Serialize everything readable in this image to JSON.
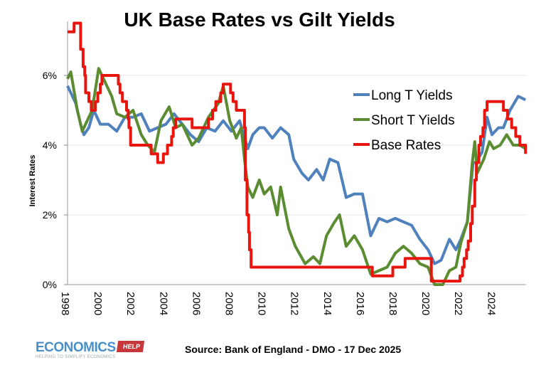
{
  "chart_data": {
    "type": "line",
    "title": "UK Base Rates vs Gilt Yields",
    "ylabel": "Interest Rates",
    "xlabel": "",
    "ylim": [
      0,
      7.5
    ],
    "xlim": [
      1998,
      2025.95
    ],
    "y_ticks": [
      "0%",
      "2%",
      "4%",
      "6%"
    ],
    "y_tick_values": [
      0,
      2,
      4,
      6
    ],
    "x_ticks": [
      "1998",
      "2000",
      "2002",
      "2004",
      "2006",
      "2008",
      "2010",
      "2012",
      "2014",
      "2016",
      "2018",
      "2020",
      "2022",
      "2024"
    ],
    "grid": "horizontal",
    "legend_position": "top-right",
    "series": [
      {
        "name": "Long T Yields",
        "color": "#4f81bd",
        "step": false,
        "points": [
          [
            1998.0,
            5.7
          ],
          [
            1998.5,
            5.2
          ],
          [
            1998.8,
            4.6
          ],
          [
            1999.0,
            4.3
          ],
          [
            1999.3,
            4.5
          ],
          [
            1999.6,
            5.0
          ],
          [
            2000.0,
            4.6
          ],
          [
            2000.5,
            4.6
          ],
          [
            2001.0,
            4.4
          ],
          [
            2001.5,
            4.8
          ],
          [
            2002.0,
            4.8
          ],
          [
            2002.5,
            4.9
          ],
          [
            2003.0,
            4.4
          ],
          [
            2003.5,
            4.5
          ],
          [
            2004.0,
            4.6
          ],
          [
            2004.5,
            4.9
          ],
          [
            2005.0,
            4.6
          ],
          [
            2005.5,
            4.3
          ],
          [
            2006.0,
            4.1
          ],
          [
            2006.5,
            4.5
          ],
          [
            2007.0,
            4.4
          ],
          [
            2007.5,
            4.7
          ],
          [
            2008.0,
            4.4
          ],
          [
            2008.5,
            4.7
          ],
          [
            2009.0,
            3.9
          ],
          [
            2009.3,
            4.3
          ],
          [
            2009.7,
            4.5
          ],
          [
            2010.0,
            4.5
          ],
          [
            2010.5,
            4.2
          ],
          [
            2011.0,
            4.5
          ],
          [
            2011.5,
            4.3
          ],
          [
            2011.8,
            3.6
          ],
          [
            2012.3,
            3.2
          ],
          [
            2012.7,
            3.0
          ],
          [
            2013.2,
            3.3
          ],
          [
            2013.6,
            3.0
          ],
          [
            2014.0,
            3.6
          ],
          [
            2014.5,
            3.5
          ],
          [
            2015.0,
            2.5
          ],
          [
            2015.5,
            2.6
          ],
          [
            2016.0,
            2.6
          ],
          [
            2016.5,
            1.4
          ],
          [
            2017.0,
            1.9
          ],
          [
            2017.5,
            1.8
          ],
          [
            2018.0,
            1.9
          ],
          [
            2018.5,
            1.8
          ],
          [
            2019.0,
            1.7
          ],
          [
            2019.5,
            1.3
          ],
          [
            2020.0,
            1.0
          ],
          [
            2020.4,
            0.6
          ],
          [
            2020.8,
            0.7
          ],
          [
            2021.3,
            1.3
          ],
          [
            2021.7,
            1.0
          ],
          [
            2022.0,
            1.3
          ],
          [
            2022.4,
            1.8
          ],
          [
            2022.75,
            3.5
          ],
          [
            2022.9,
            3.5
          ],
          [
            2023.3,
            3.8
          ],
          [
            2023.6,
            4.8
          ],
          [
            2023.9,
            4.3
          ],
          [
            2024.3,
            4.5
          ],
          [
            2024.6,
            4.5
          ],
          [
            2025.0,
            5.0
          ],
          [
            2025.5,
            5.4
          ],
          [
            2025.95,
            5.3
          ]
        ]
      },
      {
        "name": "Short T Yields",
        "color": "#5b8c32",
        "step": false,
        "points": [
          [
            1998.0,
            5.9
          ],
          [
            1998.2,
            6.1
          ],
          [
            1998.6,
            5.0
          ],
          [
            1998.9,
            4.4
          ],
          [
            1999.5,
            5.0
          ],
          [
            1999.9,
            6.2
          ],
          [
            2000.3,
            5.8
          ],
          [
            2000.7,
            5.4
          ],
          [
            2001.0,
            4.9
          ],
          [
            2001.5,
            4.8
          ],
          [
            2002.0,
            5.0
          ],
          [
            2002.5,
            4.3
          ],
          [
            2002.9,
            4.0
          ],
          [
            2003.3,
            3.8
          ],
          [
            2003.7,
            4.7
          ],
          [
            2004.2,
            5.1
          ],
          [
            2004.6,
            4.5
          ],
          [
            2005.0,
            4.6
          ],
          [
            2005.6,
            4.0
          ],
          [
            2006.0,
            4.2
          ],
          [
            2006.6,
            4.8
          ],
          [
            2007.2,
            5.2
          ],
          [
            2007.5,
            5.7
          ],
          [
            2007.9,
            4.7
          ],
          [
            2008.3,
            4.2
          ],
          [
            2008.6,
            4.5
          ],
          [
            2008.8,
            3.6
          ],
          [
            2009.0,
            2.8
          ],
          [
            2009.3,
            2.5
          ],
          [
            2009.7,
            3.0
          ],
          [
            2010.0,
            2.6
          ],
          [
            2010.4,
            2.8
          ],
          [
            2010.8,
            2.0
          ],
          [
            2011.0,
            2.8
          ],
          [
            2011.5,
            1.6
          ],
          [
            2011.9,
            1.1
          ],
          [
            2012.5,
            0.6
          ],
          [
            2013.0,
            0.8
          ],
          [
            2013.4,
            0.6
          ],
          [
            2013.8,
            1.4
          ],
          [
            2014.3,
            1.8
          ],
          [
            2014.6,
            2.0
          ],
          [
            2015.0,
            1.1
          ],
          [
            2015.5,
            1.4
          ],
          [
            2016.0,
            1.0
          ],
          [
            2016.5,
            0.3
          ],
          [
            2017.0,
            0.4
          ],
          [
            2017.5,
            0.5
          ],
          [
            2018.0,
            0.9
          ],
          [
            2018.5,
            1.1
          ],
          [
            2019.0,
            0.9
          ],
          [
            2019.5,
            0.6
          ],
          [
            2020.0,
            0.5
          ],
          [
            2020.4,
            0.0
          ],
          [
            2020.9,
            0.0
          ],
          [
            2021.3,
            0.4
          ],
          [
            2021.7,
            0.5
          ],
          [
            2022.0,
            1.2
          ],
          [
            2022.4,
            1.8
          ],
          [
            2022.7,
            3.5
          ],
          [
            2022.85,
            4.1
          ],
          [
            2023.0,
            3.2
          ],
          [
            2023.4,
            3.6
          ],
          [
            2023.75,
            4.1
          ],
          [
            2024.0,
            3.9
          ],
          [
            2024.4,
            4.0
          ],
          [
            2024.8,
            4.3
          ],
          [
            2025.2,
            4.0
          ],
          [
            2025.6,
            4.0
          ],
          [
            2025.95,
            3.9
          ]
        ]
      },
      {
        "name": "Base Rates",
        "color": "#e8150f",
        "step": true,
        "points": [
          [
            1998.0,
            7.25
          ],
          [
            1998.4,
            7.5
          ],
          [
            1998.8,
            6.75
          ],
          [
            1998.95,
            6.25
          ],
          [
            1999.05,
            6.0
          ],
          [
            1999.1,
            5.5
          ],
          [
            1999.3,
            5.25
          ],
          [
            1999.45,
            5.0
          ],
          [
            1999.7,
            5.25
          ],
          [
            1999.85,
            5.5
          ],
          [
            2000.0,
            5.75
          ],
          [
            2000.1,
            6.0
          ],
          [
            2001.1,
            5.75
          ],
          [
            2001.2,
            5.5
          ],
          [
            2001.35,
            5.25
          ],
          [
            2001.6,
            5.0
          ],
          [
            2001.7,
            4.75
          ],
          [
            2001.75,
            4.5
          ],
          [
            2001.85,
            4.0
          ],
          [
            2003.1,
            3.75
          ],
          [
            2003.5,
            3.5
          ],
          [
            2003.85,
            3.75
          ],
          [
            2004.1,
            4.0
          ],
          [
            2004.35,
            4.25
          ],
          [
            2004.45,
            4.5
          ],
          [
            2004.6,
            4.75
          ],
          [
            2005.6,
            4.5
          ],
          [
            2006.6,
            4.75
          ],
          [
            2006.85,
            5.0
          ],
          [
            2007.05,
            5.25
          ],
          [
            2007.35,
            5.5
          ],
          [
            2007.5,
            5.75
          ],
          [
            2007.95,
            5.5
          ],
          [
            2008.1,
            5.25
          ],
          [
            2008.3,
            5.0
          ],
          [
            2008.8,
            4.5
          ],
          [
            2008.85,
            3.0
          ],
          [
            2008.95,
            2.0
          ],
          [
            2009.05,
            1.5
          ],
          [
            2009.1,
            1.0
          ],
          [
            2009.2,
            0.5
          ],
          [
            2016.6,
            0.25
          ],
          [
            2017.85,
            0.5
          ],
          [
            2018.6,
            0.75
          ],
          [
            2020.2,
            0.1
          ],
          [
            2021.95,
            0.25
          ],
          [
            2022.1,
            0.5
          ],
          [
            2022.2,
            0.75
          ],
          [
            2022.35,
            1.0
          ],
          [
            2022.45,
            1.25
          ],
          [
            2022.6,
            1.75
          ],
          [
            2022.7,
            2.25
          ],
          [
            2022.85,
            3.0
          ],
          [
            2022.95,
            3.5
          ],
          [
            2023.1,
            4.0
          ],
          [
            2023.2,
            4.25
          ],
          [
            2023.35,
            4.5
          ],
          [
            2023.45,
            5.0
          ],
          [
            2023.6,
            5.25
          ],
          [
            2024.6,
            5.0
          ],
          [
            2024.85,
            4.75
          ],
          [
            2025.1,
            4.5
          ],
          [
            2025.35,
            4.25
          ],
          [
            2025.6,
            4.0
          ],
          [
            2025.95,
            3.75
          ]
        ]
      }
    ]
  },
  "footer": {
    "source": "Source: Bank of England - DMO - 17 Dec 2025",
    "logo_word": "ECONOMICS",
    "logo_tag": "HELP",
    "logo_subtitle": "HELPING TO SIMPLIFY ECONOMICS"
  }
}
